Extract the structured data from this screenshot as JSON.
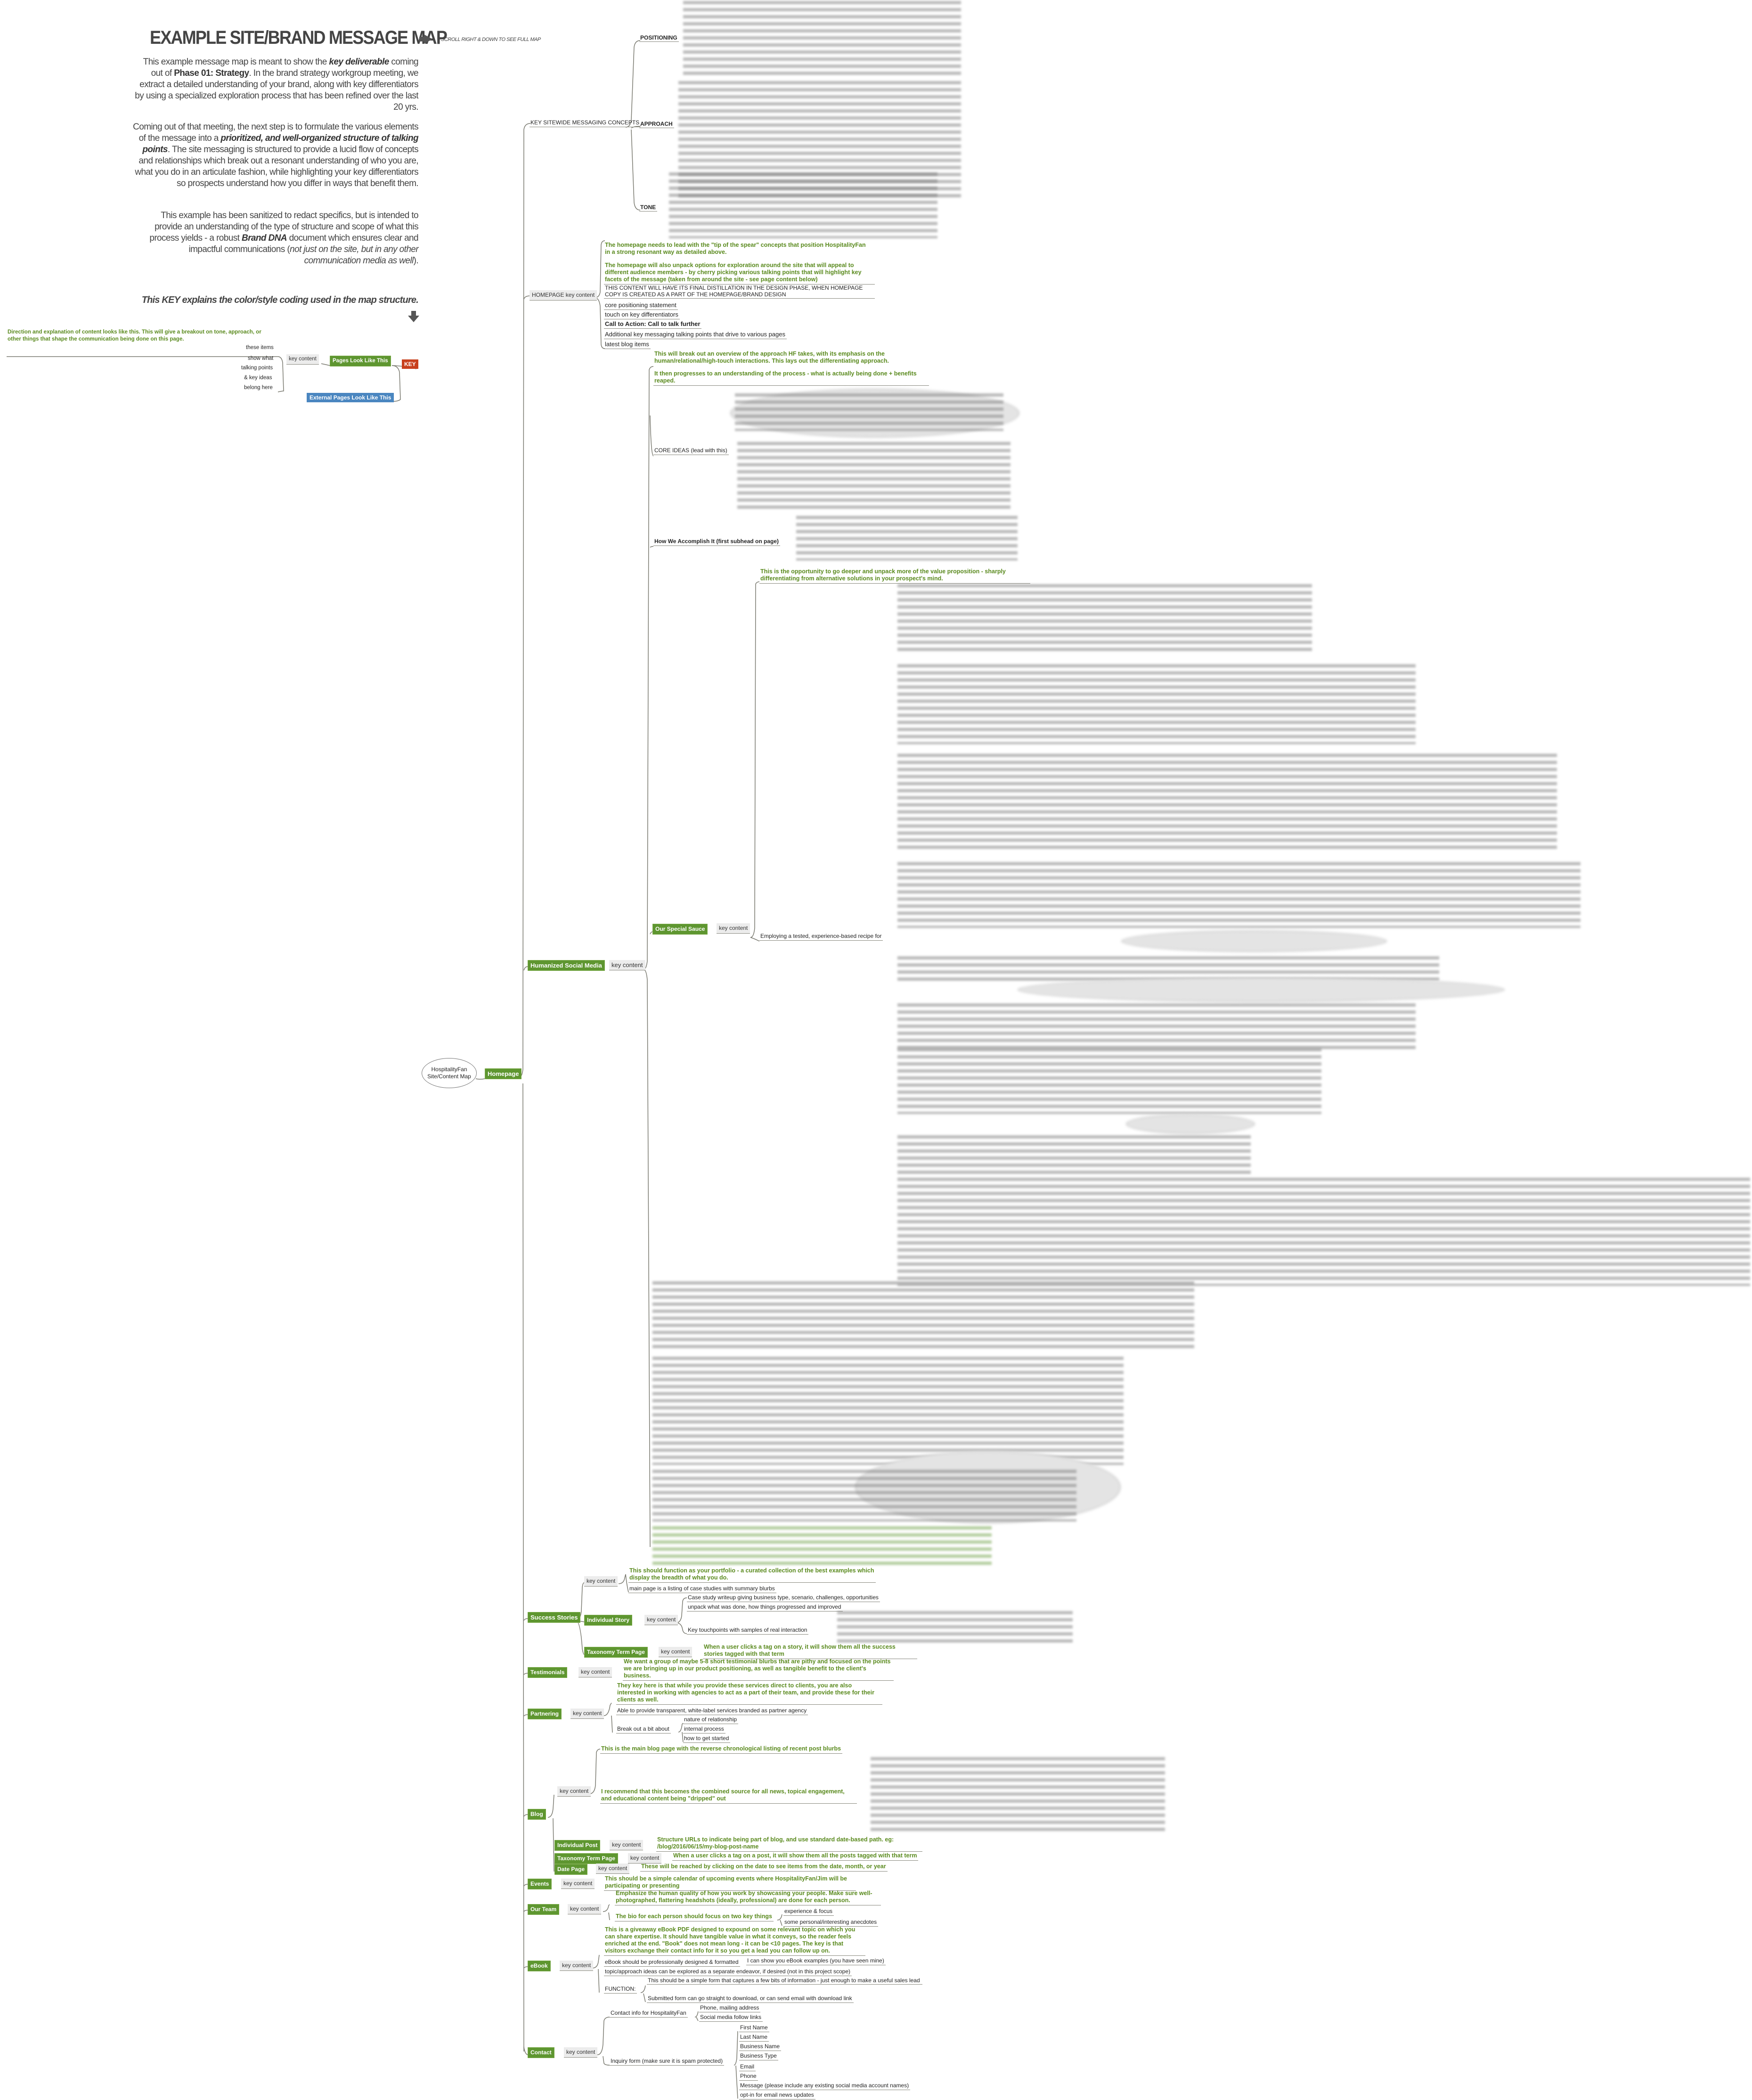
{
  "header": {
    "title": "EXAMPLE SITE/BRAND MESSAGE MAP",
    "scroll_hint": "SCROLL RIGHT & DOWN TO SEE FULL MAP",
    "para1": [
      "This example message map is meant to show the ",
      "key deliverable",
      " coming out of ",
      "Phase 01: Strategy",
      ". In the brand strategy workgroup meeting, we extract a detailed understanding of your brand, along with key differentiators by using a specialized exploration process that has been refined over the last 20 yrs."
    ],
    "para2": [
      "Coming out of that meeting, the next step is to formulate the various elements of the message into a ",
      "prioritized, and well-organized structure of talking points",
      ". The site messaging is structured to provide a lucid flow of concepts and relationships which break out a resonant understanding of who you are, what you do in an articulate fashion, while highlighting your key differentiators so prospects understand how you differ in ways that benefit them."
    ],
    "para3": [
      "This example has been sanitized to redact specifics, but is intended to provide an understanding of the type of structure and scope of what this process yields - a robust ",
      "Brand DNA",
      " document which ensures clear and impactful communications (",
      "not just on the site, but in any other communication media as well",
      ")."
    ],
    "key_note": "This KEY explains the color/style coding used in the map structure."
  },
  "key": {
    "direction": "Direction and explanation of content looks like this. This will give a breakout on tone, approach, or other things that shape the communication being done on this page.",
    "items": [
      "these items",
      "show what",
      "talking points",
      "& key ideas",
      "belong here"
    ],
    "key_content": "key content",
    "pages_label": "Pages Look Like This",
    "external_label": "External Pages Look Like This",
    "key_label": "KEY",
    "colors": {
      "page": "#5e9630",
      "external": "#4a86c0",
      "key": "#c8401d",
      "direction": "#5a8a1e"
    }
  },
  "map": {
    "central": [
      "HospitalityFan",
      "Site/Content Map"
    ],
    "homepage": {
      "label": "Homepage",
      "sitewide": {
        "label": "KEY SITEWIDE MESSAGING CONCEPTS",
        "children": [
          "POSITIONING",
          "APPROACH",
          "TONE"
        ]
      },
      "homepage_content": {
        "label": "HOMEPAGE key content",
        "direction1": "The homepage needs to lead with the \"tip of the spear\" concepts that position HospitalityFan in a strong resonant way as detailed above.",
        "direction2": "The homepage will also unpack options for exploration around the site that will appeal to different audience members - by cherry picking various talking points that will highlight key facets of the message (taken from around the site - see page content below)",
        "items": [
          "THIS CONTENT WILL HAVE ITS FINAL DISTILLATION IN THE DESIGN PHASE, WHEN HOMEPAGE COPY IS CREATED AS A PART OF THE HOMEPAGE/BRAND DESIGN",
          "core positioning statement",
          "touch on key differentiators",
          "Call to Action: Call to talk further",
          "Additional key messaging talking points that drive to various pages",
          "latest blog items"
        ]
      },
      "humanized": {
        "label": "Humanized Social Media",
        "key_content": "key content",
        "direction1": "This will break out an overview of the approach HF takes, with its emphasis on the human/relational/high-touch interactions. This lays out the differentiating approach.",
        "direction2": "It then progresses to an understanding of the process - what is actually being done + benefits reaped.",
        "core_ideas": "CORE IDEAS (lead with this)",
        "how": "How We Accomplish It (first subhead on page)",
        "special_sauce": {
          "direction": "This is the opportunity to go deeper and unpack more of the value proposition - sharply differentiating from alternative solutions in your prospect's mind.",
          "label": "Our Special Sauce",
          "key_content": "key content",
          "item": "Employing a tested, experience-based recipe for"
        }
      }
    },
    "success_stories": {
      "label": "Success Stories",
      "key_content": "key content",
      "direction": "This should function as your portfolio - a curated collection of the best examples which display the breadth of what you do.",
      "item": "main page is a listing of case studies with summary blurbs",
      "individual_story": {
        "label": "Individual Story",
        "key_content": "key content",
        "items": [
          "Case study writeup giving business type, scenario, challenges, opportunities",
          "unpack what was done, how things progressed and improved",
          "Key touchpoints with samples of real interaction"
        ]
      },
      "taxonomy": {
        "label": "Taxonomy Term Page",
        "key_content": "key content",
        "direction": "When a user clicks a tag on a story, it will show them all the success stories tagged with that term"
      }
    },
    "testimonials": {
      "label": "Testimonials",
      "key_content": "key content",
      "direction": "We want a group of maybe 5-8 short testimonial blurbs that are pithy and focused on the points we are bringing up in our product positioning, as well as tangible benefit to the client's business."
    },
    "partnering": {
      "label": "Partnering",
      "key_content": "key content",
      "direction": "They key here is that while you provide these services direct to clients, you are also interested in working with agencies to act as a part of their team, and provide these for their clients as well.",
      "item": "Able to provide transparent, white-label services branded as partner agency",
      "breakout": "Break out a bit about",
      "breakout_items": [
        "nature of relationship",
        "internal process",
        "how to get started"
      ]
    },
    "blog": {
      "label": "Blog",
      "key_content": "key content",
      "direction1": "This is the main blog page with the reverse chronological listing of recent post blurbs",
      "direction2": "I recommend that this becomes the combined source for all news, topical engagement, and educational content being \"dripped\" out",
      "individual_post": {
        "label": "Individual Post",
        "key_content": "key content",
        "direction": "Structure URLs to indicate being part of blog, and use standard date-based path. eg: /blog/2016/06/15/my-blog-post-name"
      },
      "taxonomy": {
        "label": "Taxonomy Term Page",
        "key_content": "key content",
        "direction": "When a user clicks a tag on a post, it will show them all the posts tagged with that term"
      },
      "date_page": {
        "label": "Date Page",
        "key_content": "key content",
        "direction": "These will be reached by clicking on the date to see items from the date, month, or year"
      }
    },
    "events": {
      "label": "Events",
      "key_content": "key content",
      "direction": "This should be a simple calendar of upcoming events where HospitalityFan/Jim will be participating or presenting"
    },
    "our_team": {
      "label": "Our Team",
      "key_content": "key content",
      "direction": "Emphasize the human quality of how you work by showcasing your people. Make sure well-photographed, flattering headshots (ideally, professional) are done for each person.",
      "bio": "The bio for each person should focus on two key things",
      "bio_items": [
        "experience & focus",
        "some personal/interesting anecdotes"
      ]
    },
    "ebook": {
      "label": "eBook",
      "key_content": "key content",
      "direction": "This is a giveaway eBook PDF designed to expound on some relevant topic on which you can share expertise. It should have tangible value in what it conveys, so the reader feels enriched at the end. \"Book\" does not mean long - it can be <10 pages. The key is that visitors exchange their contact info for it so you get a lead you can follow up on.",
      "design": "eBook should be professionally designed & formatted",
      "design_note": "I can show you eBook examples (you have seen mine)",
      "topic": "topic/approach ideas can be explored as a separate endeavor, if desired (not in this project scope)",
      "function": "FUNCTION:",
      "function_items": [
        "This should be a simple form that captures a few bits of information - just enough to make a useful sales lead",
        "Submitted form can go straight to download, or can send email with download link"
      ]
    },
    "contact": {
      "label": "Contact",
      "key_content": "key content",
      "info": "Contact info for HospitalityFan",
      "info_items": [
        "Phone, mailing address",
        "Social media follow links"
      ],
      "form": "Inquiry form (make sure it is spam protected)",
      "form_fields": [
        "First Name",
        "Last Name",
        "Business Name",
        "Business Type",
        "Email",
        "Phone",
        "Message (please include any existing social media account names)",
        "opt-in for email news updates"
      ]
    }
  }
}
